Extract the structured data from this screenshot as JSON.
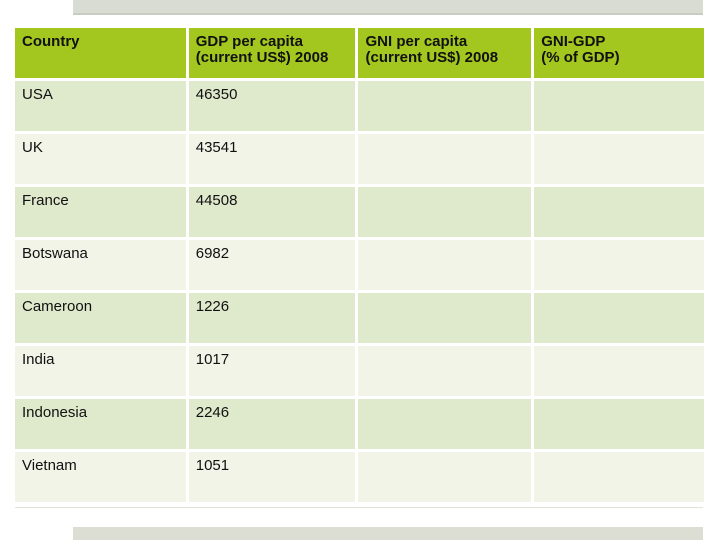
{
  "slide": {
    "background_color": "#ffffff",
    "top_bar_color": "#d9dcd2",
    "bottom_bar_color": "#dcded3"
  },
  "table": {
    "header_bg_color": "#a3c71e",
    "row_odd_color": "#dfe9cc",
    "row_even_color": "#f1f4e6",
    "text_color": "#111111",
    "columns": [
      {
        "line1": "Country"
      },
      {
        "line1": "GDP per capita",
        "line2": "(current US$) 2008"
      },
      {
        "line1": "GNI per capita",
        "line2": "(current US$) 2008"
      },
      {
        "line1": "GNI-GDP",
        "line2": "(% of GDP)"
      }
    ],
    "rows": [
      {
        "country": "USA",
        "gdp_per_capita": "46350",
        "gni_per_capita": "",
        "gni_gdp": ""
      },
      {
        "country": "UK",
        "gdp_per_capita": "43541",
        "gni_per_capita": "",
        "gni_gdp": ""
      },
      {
        "country": "France",
        "gdp_per_capita": "44508",
        "gni_per_capita": "",
        "gni_gdp": ""
      },
      {
        "country": "Botswana",
        "gdp_per_capita": "6982",
        "gni_per_capita": "",
        "gni_gdp": ""
      },
      {
        "country": "Cameroon",
        "gdp_per_capita": "1226",
        "gni_per_capita": "",
        "gni_gdp": ""
      },
      {
        "country": "India",
        "gdp_per_capita": "1017",
        "gni_per_capita": "",
        "gni_gdp": ""
      },
      {
        "country": "Indonesia",
        "gdp_per_capita": "2246",
        "gni_per_capita": "",
        "gni_gdp": ""
      },
      {
        "country": "Vietnam",
        "gdp_per_capita": "1051",
        "gni_per_capita": "",
        "gni_gdp": ""
      }
    ]
  },
  "chart_data": {
    "type": "table",
    "columns": [
      "Country",
      "GDP per capita (current US$) 2008",
      "GNI per capita (current US$) 2008",
      "GNI-GDP (% of GDP)"
    ],
    "rows": [
      [
        "USA",
        46350,
        null,
        null
      ],
      [
        "UK",
        43541,
        null,
        null
      ],
      [
        "France",
        44508,
        null,
        null
      ],
      [
        "Botswana",
        6982,
        null,
        null
      ],
      [
        "Cameroon",
        1226,
        null,
        null
      ],
      [
        "India",
        1017,
        null,
        null
      ],
      [
        "Indonesia",
        2246,
        null,
        null
      ],
      [
        "Vietnam",
        1051,
        null,
        null
      ]
    ]
  }
}
